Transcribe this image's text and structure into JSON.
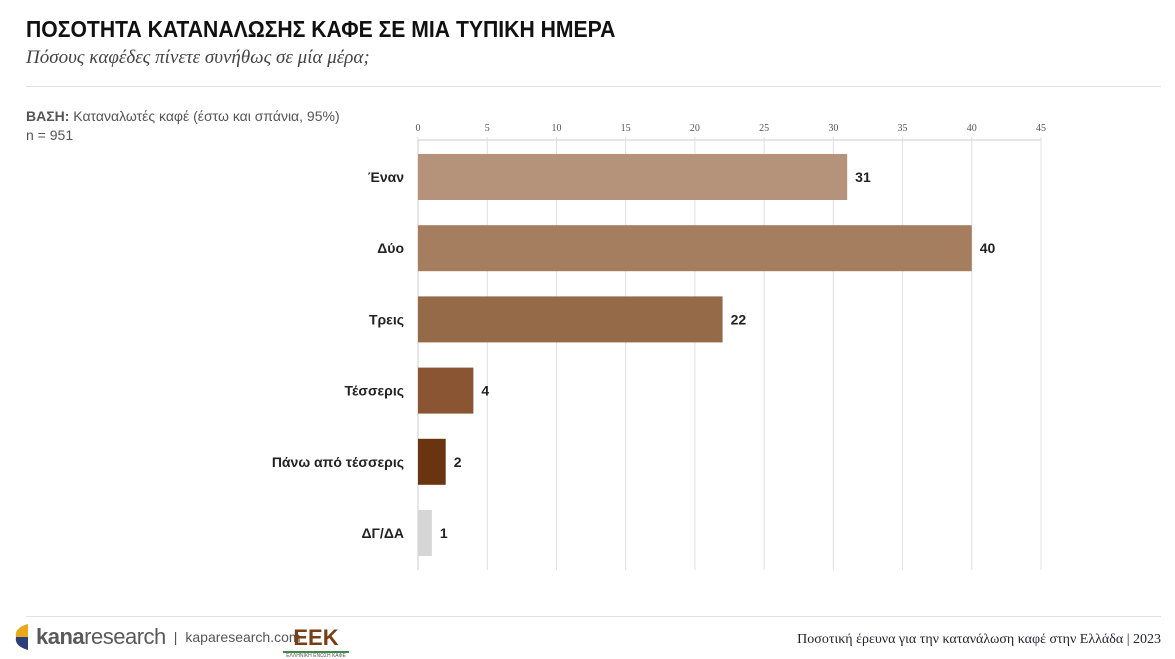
{
  "header": {
    "title": "ΠΟΣΟΤΗΤΑ ΚΑΤΑΝΑΛΩΣΗΣ ΚΑΦΕ ΣΕ ΜΙΑ ΤΥΠΙΚΗ ΗΜΕΡΑ",
    "subtitle": "Πόσους καφέδες πίνετε συνήθως σε μία μέρα;"
  },
  "base": {
    "label": "ΒΑΣΗ:",
    "text": " Καταναλωτές καφέ (έστω και σπάνια, 95%)",
    "n": "n = 951"
  },
  "footer": {
    "logo": "kanaresearch",
    "logo_bold": "kana",
    "logo_rest": "research",
    "separator": "|",
    "site": "kaparesearch.com",
    "eek": "ΕΕΚ",
    "eek_sub": "ΕΛΛΗΝΙΚΗ ΕΝΩΣΗ ΚΑΦΕ",
    "right_text": "Ποσοτική έρευνα για την κατανάλωση καφέ στην Ελλάδα |",
    "year": "2023"
  },
  "chart_data": {
    "type": "bar",
    "orientation": "horizontal",
    "categories": [
      "Έναν",
      "Δύο",
      "Τρεις",
      "Τέσσερις",
      "Πάνω από τέσσερις",
      "ΔΓ/ΔΑ"
    ],
    "values": [
      31,
      40,
      22,
      4,
      2,
      1
    ],
    "colors": [
      "#b5937a",
      "#a57e60",
      "#956a48",
      "#8a5532",
      "#6b3410",
      "#d6d6d6"
    ],
    "xlim": [
      0,
      45
    ],
    "xticks": [
      0,
      5,
      10,
      15,
      20,
      25,
      30,
      35,
      40,
      45
    ],
    "grid": true,
    "xaxis_position": "top",
    "unit": "%"
  }
}
